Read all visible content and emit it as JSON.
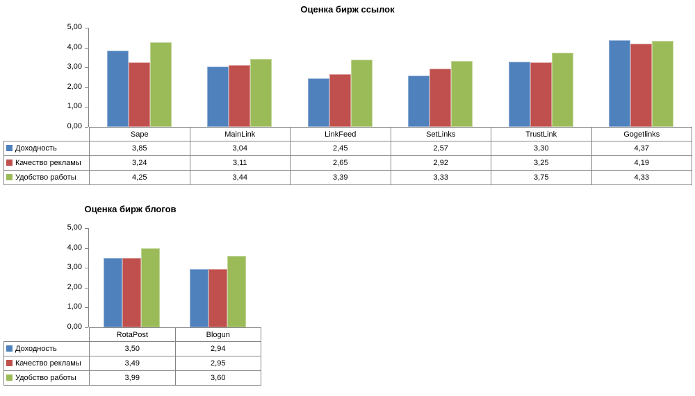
{
  "chart_data": [
    {
      "type": "bar",
      "title": "Оценка бирж ссылок",
      "categories": [
        "Sape",
        "MainLink",
        "LinkFeed",
        "SetLinks",
        "TrustLink",
        "Gogetlinks"
      ],
      "series": [
        {
          "name": "Доходность",
          "values": [
            3.85,
            3.04,
            2.45,
            2.57,
            3.3,
            4.37
          ],
          "values_display": [
            "3,85",
            "3,04",
            "2,45",
            "2,57",
            "3,30",
            "4,37"
          ]
        },
        {
          "name": "Качество рекламы",
          "values": [
            3.24,
            3.11,
            2.65,
            2.92,
            3.25,
            4.19
          ],
          "values_display": [
            "3,24",
            "3,11",
            "2,65",
            "2,92",
            "3,25",
            "4,19"
          ]
        },
        {
          "name": "Удобство работы",
          "values": [
            4.25,
            3.44,
            3.39,
            3.33,
            3.75,
            4.33
          ],
          "values_display": [
            "4,25",
            "3,44",
            "3,39",
            "3,33",
            "3,75",
            "4,33"
          ]
        }
      ],
      "ylim": [
        0,
        5
      ],
      "y_tick_labels": [
        "0,00",
        "1,00",
        "2,00",
        "3,00",
        "4,00",
        "5,00"
      ],
      "grid": false,
      "legend_position": "data-table-left",
      "data_table_shown": true
    },
    {
      "type": "bar",
      "title": "Оценка бирж блогов",
      "categories": [
        "RotaPost",
        "Blogun"
      ],
      "series": [
        {
          "name": "Доходность",
          "values": [
            3.5,
            2.94
          ],
          "values_display": [
            "3,50",
            "2,94"
          ]
        },
        {
          "name": "Качество рекламы",
          "values": [
            3.49,
            2.95
          ],
          "values_display": [
            "3,49",
            "2,95"
          ]
        },
        {
          "name": "Удобство работы",
          "values": [
            3.99,
            3.6
          ],
          "values_display": [
            "3,99",
            "3,60"
          ]
        }
      ],
      "ylim": [
        0,
        5
      ],
      "y_tick_labels": [
        "0,00",
        "1,00",
        "2,00",
        "3,00",
        "4,00",
        "5,00"
      ],
      "grid": false,
      "legend_position": "data-table-left",
      "data_table_shown": true
    }
  ],
  "colors": {
    "series_fill": [
      "#4F81BD",
      "#C0504D",
      "#9BBB59"
    ],
    "series_border": [
      "#95B3D7",
      "#D99694",
      "#C3D69B"
    ],
    "axis_and_table_border": "#848484",
    "text": "#000000",
    "background": "#FFFFFF"
  }
}
